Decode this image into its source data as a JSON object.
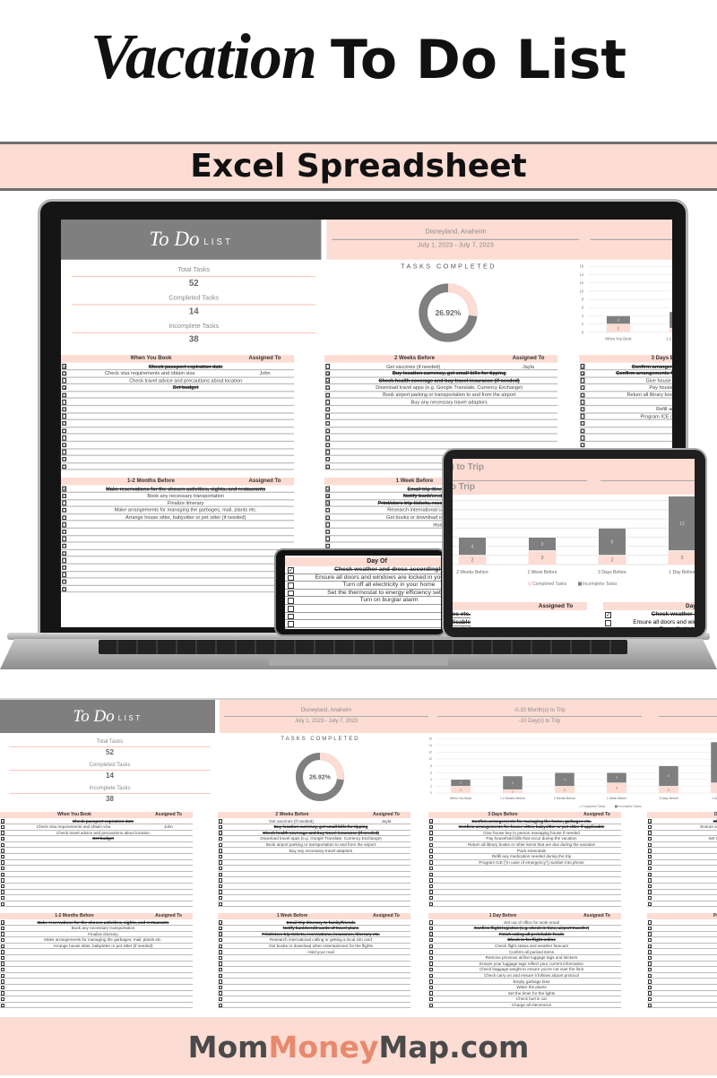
{
  "header": {
    "title_script": "Vacation",
    "title_main": "To Do List",
    "subtitle": "Excel Spreadsheet"
  },
  "sheet": {
    "logo": {
      "todo": "To Do",
      "list": "LIST"
    },
    "trip": {
      "destination": "Disneyland, Anaheim",
      "dates": "July 1, 2023 - July 7, 2023",
      "months_to_trip": "-0.33 Month(s) to Trip",
      "days_to_trip": "-10 Day(s) to Trip"
    },
    "summary": {
      "total_label": "Total Tasks",
      "total": "52",
      "completed_label": "Completed Tasks",
      "completed": "14",
      "incomplete_label": "Incomplete Tasks",
      "incomplete": "38"
    },
    "donut": {
      "title": "TASKS COMPLETED",
      "percent_label": "26.92%",
      "percent": 26.92
    },
    "assigned_label": "Assigned To",
    "sections": [
      {
        "title": "When You Book",
        "rows": [
          {
            "done": true,
            "task": "Check passport expiration date",
            "assigned": ""
          },
          {
            "done": false,
            "task": "Check visa requirements and obtain visa",
            "assigned": "John"
          },
          {
            "done": false,
            "task": "Check travel advice and precautions about location",
            "assigned": ""
          },
          {
            "done": true,
            "task": "Set budget",
            "assigned": ""
          }
        ]
      },
      {
        "title": "2 Weeks Before",
        "rows": [
          {
            "done": false,
            "task": "Get vaccines (if needed)",
            "assigned": "Jayla"
          },
          {
            "done": true,
            "task": "Buy location currency, get small bills for tipping",
            "assigned": ""
          },
          {
            "done": true,
            "task": "Check health coverage and buy travel insurance (if needed)",
            "assigned": ""
          },
          {
            "done": false,
            "task": "Download travel apps (e.g. Google Translate, Currency Exchange)",
            "assigned": ""
          },
          {
            "done": false,
            "task": "Book airport parking or transportation to and from the airport",
            "assigned": ""
          },
          {
            "done": false,
            "task": "Buy any necessary travel adaptors",
            "assigned": ""
          }
        ]
      },
      {
        "title": "3 Days Before",
        "rows": [
          {
            "done": true,
            "task": "Confirm arrangements for managing the home, garbages etc.",
            "assigned": ""
          },
          {
            "done": true,
            "task": "Confirm arrangements for house sitter, babysitter or pet sitter if applicable",
            "assigned": ""
          },
          {
            "done": false,
            "task": "Give house key to person managing house if needed",
            "assigned": ""
          },
          {
            "done": false,
            "task": "Pay household bills that occur during the vacation",
            "assigned": ""
          },
          {
            "done": false,
            "task": "Return all library books or other items that are due during the vacation",
            "assigned": ""
          },
          {
            "done": false,
            "task": "Pack essentials",
            "assigned": ""
          },
          {
            "done": false,
            "task": "Refill any medication needed during the trip",
            "assigned": ""
          },
          {
            "done": false,
            "task": "Program ICE (\"in case of emergency\") number into phone",
            "assigned": ""
          }
        ]
      },
      {
        "title": "Day Of",
        "rows": [
          {
            "done": true,
            "task": "Check weather and dress accordingly",
            "assigned": ""
          },
          {
            "done": false,
            "task": "Ensure all doors and windows are locked in your home",
            "assigned": ""
          },
          {
            "done": false,
            "task": "Turn off all electricity in your home",
            "assigned": ""
          },
          {
            "done": false,
            "task": "Set the thermostat to energy efficiency setting",
            "assigned": ""
          },
          {
            "done": false,
            "task": "Turn on burglar alarm",
            "assigned": ""
          }
        ]
      },
      {
        "title": "1-2 Months Before",
        "rows": [
          {
            "done": true,
            "task": "Make reservations for the chosen activities, sights, and restaurants",
            "assigned": ""
          },
          {
            "done": false,
            "task": "Book any necessary transportation",
            "assigned": ""
          },
          {
            "done": false,
            "task": "Finalize itinerary",
            "assigned": ""
          },
          {
            "done": false,
            "task": "Make arrangements for managing the garbages, mail, plants etc.",
            "assigned": ""
          },
          {
            "done": false,
            "task": "Arrange house sitter, babysitter or pet sitter (if needed)",
            "assigned": ""
          }
        ]
      },
      {
        "title": "1 Week Before",
        "rows": [
          {
            "done": true,
            "task": "Email trip itinerary to family/friends",
            "assigned": ""
          },
          {
            "done": true,
            "task": "Notify bank/credit cards of travel plans",
            "assigned": ""
          },
          {
            "done": true,
            "task": "Print/store trip tickets, reservations, insurance, itinerary etc.",
            "assigned": ""
          },
          {
            "done": false,
            "task": "Research international calling or getting a local sim card",
            "assigned": ""
          },
          {
            "done": false,
            "task": "Get books or download other entertainment for the flights",
            "assigned": ""
          },
          {
            "done": false,
            "task": "Hold your mail",
            "assigned": ""
          }
        ]
      },
      {
        "title": "1 Day Before",
        "rows": [
          {
            "done": false,
            "task": "Set out of office for work email",
            "assigned": ""
          },
          {
            "done": true,
            "task": "Confirm flight logistics (e.g. check-in time, airport transfer)",
            "assigned": ""
          },
          {
            "done": true,
            "task": "Finish eating all perishable foods",
            "assigned": ""
          },
          {
            "done": true,
            "task": "Check in for flight online",
            "assigned": ""
          },
          {
            "done": false,
            "task": "Check flight status and weather forecast",
            "assigned": ""
          },
          {
            "done": false,
            "task": "Confirm all packed items",
            "assigned": ""
          },
          {
            "done": false,
            "task": "Remove previous airline luggage tags and stickers",
            "assigned": ""
          },
          {
            "done": false,
            "task": "Ensure your luggage tags reflect your current information",
            "assigned": ""
          },
          {
            "done": false,
            "task": "Check baggage weight to ensure you're not over the limit",
            "assigned": ""
          },
          {
            "done": false,
            "task": "Check carry on and ensure it follows airport protocol",
            "assigned": ""
          },
          {
            "done": false,
            "task": "Empty garbage bins",
            "assigned": ""
          },
          {
            "done": false,
            "task": "Water the plants",
            "assigned": ""
          },
          {
            "done": false,
            "task": "Set the timer for the lights",
            "assigned": ""
          },
          {
            "done": false,
            "task": "Check fuel in car",
            "assigned": ""
          },
          {
            "done": false,
            "task": "Charge all electronics",
            "assigned": ""
          }
        ]
      },
      {
        "title": "Post Va",
        "rows": [
          {
            "done": false,
            "task": "Preserve vacat",
            "assigned": ""
          },
          {
            "done": false,
            "task": "Print off any va",
            "assigned": ""
          },
          {
            "done": false,
            "task": "Consider putting toget",
            "assigned": ""
          }
        ]
      }
    ]
  },
  "chart_data": {
    "type": "bar",
    "stacked": true,
    "categories": [
      "When You Book",
      "1-2 Months Before",
      "2 Weeks Before",
      "1 Week Before",
      "3 Days Before",
      "1 Day Before"
    ],
    "series": [
      {
        "name": "Completed Tasks",
        "values": [
          2,
          1,
          2,
          3,
          2,
          3
        ],
        "color": "#fddcd3"
      },
      {
        "name": "Incomplete Tasks",
        "values": [
          2,
          4,
          4,
          3,
          6,
          12
        ],
        "color": "#7f7f7f"
      }
    ],
    "ylim": [
      0,
      16
    ],
    "yticks": [
      0,
      2,
      4,
      6,
      8,
      10,
      12,
      14,
      16
    ],
    "grid": true,
    "legend": "bottom"
  },
  "footer": {
    "mom": "Mom",
    "money": "Money",
    "map": "Map.com",
    "money_color": "#e8896e"
  }
}
